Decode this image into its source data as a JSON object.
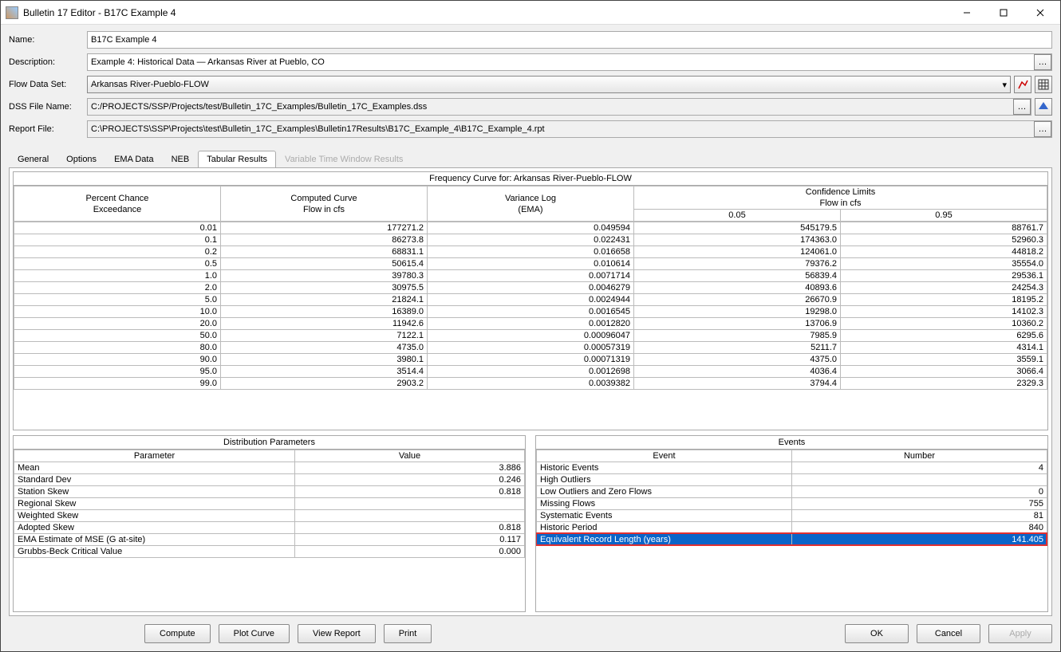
{
  "window": {
    "title": "Bulletin 17 Editor - B17C Example 4"
  },
  "form": {
    "name_label": "Name:",
    "name_value": "B17C Example 4",
    "desc_label": "Description:",
    "desc_value": "Example 4: Historical Data — Arkansas River at Pueblo, CO",
    "flowdata_label": "Flow Data Set:",
    "flowdata_value": "Arkansas River-Pueblo-FLOW",
    "dssfile_label": "DSS File Name:",
    "dssfile_value": "C:/PROJECTS/SSP/Projects/test/Bulletin_17C_Examples/Bulletin_17C_Examples.dss",
    "report_label": "Report File:",
    "report_value": "C:\\PROJECTS\\SSP\\Projects\\test\\Bulletin_17C_Examples\\Bulletin17Results\\B17C_Example_4\\B17C_Example_4.rpt"
  },
  "tabs": {
    "general": "General",
    "options": "Options",
    "ema": "EMA Data",
    "neb": "NEB",
    "tabular": "Tabular Results",
    "vtw": "Variable Time Window Results"
  },
  "freq_table": {
    "title": "Frequency Curve for: Arkansas River-Pueblo-FLOW",
    "h_pce_1": "Percent Chance",
    "h_pce_2": "Exceedance",
    "h_cc_1": "Computed Curve",
    "h_cc_2": "Flow in cfs",
    "h_vl_1": "Variance Log",
    "h_vl_2": "(EMA)",
    "h_cl_1": "Confidence Limits",
    "h_cl_2": "Flow in cfs",
    "h_05": "0.05",
    "h_95": "0.95",
    "rows": [
      [
        "0.01",
        "177271.2",
        "0.049594",
        "545179.5",
        "88761.7"
      ],
      [
        "0.1",
        "86273.8",
        "0.022431",
        "174363.0",
        "52960.3"
      ],
      [
        "0.2",
        "68831.1",
        "0.016658",
        "124061.0",
        "44818.2"
      ],
      [
        "0.5",
        "50615.4",
        "0.010614",
        "79376.2",
        "35554.0"
      ],
      [
        "1.0",
        "39780.3",
        "0.0071714",
        "56839.4",
        "29536.1"
      ],
      [
        "2.0",
        "30975.5",
        "0.0046279",
        "40893.6",
        "24254.3"
      ],
      [
        "5.0",
        "21824.1",
        "0.0024944",
        "26670.9",
        "18195.2"
      ],
      [
        "10.0",
        "16389.0",
        "0.0016545",
        "19298.0",
        "14102.3"
      ],
      [
        "20.0",
        "11942.6",
        "0.0012820",
        "13706.9",
        "10360.2"
      ],
      [
        "50.0",
        "7122.1",
        "0.00096047",
        "7985.9",
        "6295.6"
      ],
      [
        "80.0",
        "4735.0",
        "0.00057319",
        "5211.7",
        "4314.1"
      ],
      [
        "90.0",
        "3980.1",
        "0.00071319",
        "4375.0",
        "3559.1"
      ],
      [
        "95.0",
        "3514.4",
        "0.0012698",
        "4036.4",
        "3066.4"
      ],
      [
        "99.0",
        "2903.2",
        "0.0039382",
        "3794.4",
        "2329.3"
      ]
    ]
  },
  "dist_params": {
    "title": "Distribution Parameters",
    "h_param": "Parameter",
    "h_value": "Value",
    "rows": [
      [
        "Mean",
        "3.886"
      ],
      [
        "Standard Dev",
        "0.246"
      ],
      [
        "Station Skew",
        "0.818"
      ],
      [
        "Regional Skew",
        ""
      ],
      [
        "Weighted Skew",
        ""
      ],
      [
        "Adopted Skew",
        "0.818"
      ],
      [
        "EMA Estimate of MSE (G at-site)",
        "0.117"
      ],
      [
        "Grubbs-Beck Critical Value",
        "0.000"
      ]
    ]
  },
  "events": {
    "title": "Events",
    "h_event": "Event",
    "h_number": "Number",
    "rows": [
      [
        "Historic Events",
        "4"
      ],
      [
        "High Outliers",
        ""
      ],
      [
        "Low Outliers and Zero Flows",
        "0"
      ],
      [
        "Missing Flows",
        "755"
      ],
      [
        "Systematic Events",
        "81"
      ],
      [
        "Historic Period",
        "840"
      ],
      [
        "Equivalent Record Length (years)",
        "141.405"
      ]
    ],
    "highlighted_index": 6
  },
  "buttons": {
    "compute": "Compute",
    "plot": "Plot Curve",
    "report": "View Report",
    "print": "Print",
    "ok": "OK",
    "cancel": "Cancel",
    "apply": "Apply"
  }
}
